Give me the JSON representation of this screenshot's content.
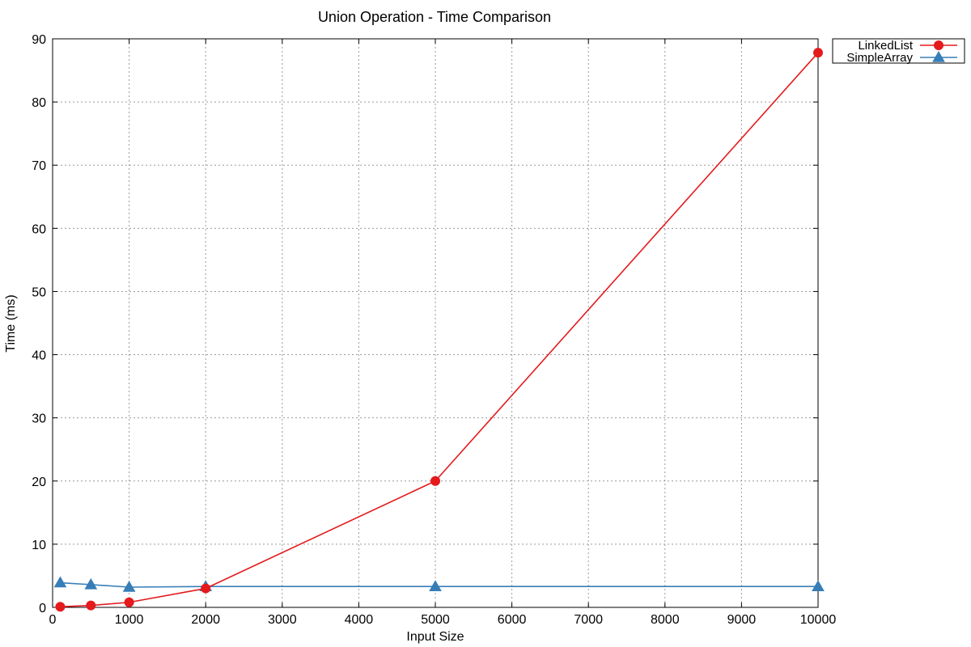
{
  "chart_data": {
    "type": "line",
    "title": "Union Operation - Time Comparison",
    "xlabel": "Input Size",
    "ylabel": "Time (ms)",
    "xlim": [
      0,
      10000
    ],
    "ylim": [
      0,
      90
    ],
    "xticks": [
      0,
      1000,
      2000,
      3000,
      4000,
      5000,
      6000,
      7000,
      8000,
      9000,
      10000
    ],
    "yticks": [
      0,
      10,
      20,
      30,
      40,
      50,
      60,
      70,
      80,
      90
    ],
    "xtick_labels": [
      "0",
      "1000",
      "2000",
      "3000",
      "4000",
      "5000",
      "6000",
      "7000",
      "8000",
      "9000",
      "10000"
    ],
    "ytick_labels": [
      "0",
      "10",
      "20",
      "30",
      "40",
      "50",
      "60",
      "70",
      "80",
      "90"
    ],
    "grid": true,
    "legend_position": "outside-top-right",
    "series": [
      {
        "name": "LinkedList",
        "color": "#e41a1c",
        "marker": "circle",
        "x": [
          100,
          500,
          1000,
          2000,
          5000,
          10000
        ],
        "y": [
          0.1,
          0.3,
          0.8,
          3.0,
          20.0,
          87.8
        ]
      },
      {
        "name": "SimpleArray",
        "color": "#377eb8",
        "marker": "triangle",
        "x": [
          100,
          500,
          1000,
          2000,
          5000,
          10000
        ],
        "y": [
          3.9,
          3.6,
          3.2,
          3.3,
          3.3,
          3.3
        ]
      }
    ]
  }
}
